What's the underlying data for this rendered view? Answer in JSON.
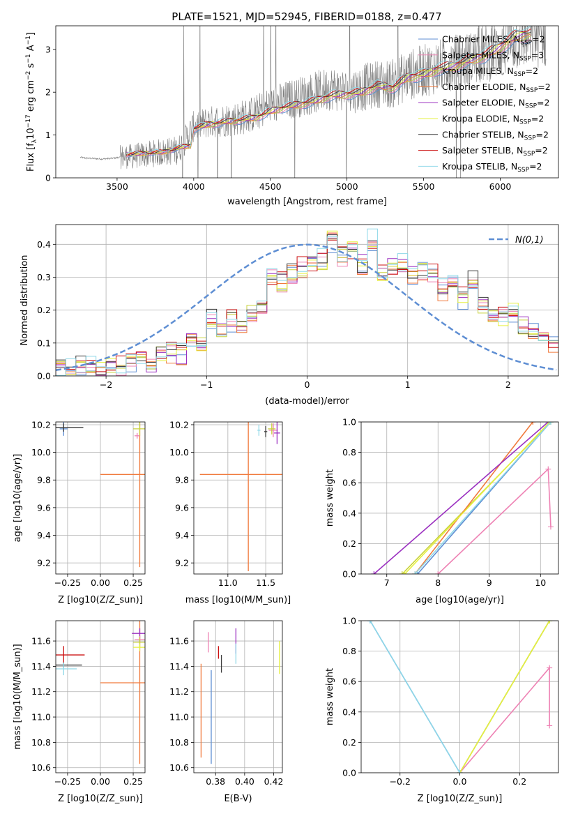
{
  "figure_title": "PLATE=1521, MJD=52945, FIBERID=0188, z=0.477",
  "model_legend": [
    {
      "name": "Chabrier MILES, N_SSP=2",
      "base": "Chabrier MILES, N",
      "sub": "SSP",
      "tail": "=2",
      "color": "#5e8ed3"
    },
    {
      "name": "Salpeter MILES, N_SSP=3",
      "base": "Salpeter MILES, N",
      "sub": "SSP",
      "tail": "=3",
      "color": "#ee82b4"
    },
    {
      "name": "Kroupa MILES, N_SSP=2",
      "base": "Kroupa MILES, N",
      "sub": "SSP",
      "tail": "=2",
      "color": "#c8d23c"
    },
    {
      "name": "Chabrier ELODIE, N_SSP=2",
      "base": "Chabrier ELODIE, N",
      "sub": "SSP",
      "tail": "=2",
      "color": "#f07a3c"
    },
    {
      "name": "Salpeter ELODIE, N_SSP=2",
      "base": "Salpeter ELODIE, N",
      "sub": "SSP",
      "tail": "=2",
      "color": "#9b30c0"
    },
    {
      "name": "Kroupa ELODIE, N_SSP=2",
      "base": "Kroupa ELODIE, N",
      "sub": "SSP",
      "tail": "=2",
      "color": "#e6f040"
    },
    {
      "name": "Chabrier STELIB, N_SSP=2",
      "base": "Chabrier STELIB, N",
      "sub": "SSP",
      "tail": "=2",
      "color": "#3a3a3a"
    },
    {
      "name": "Salpeter STELIB, N_SSP=2",
      "base": "Salpeter STELIB, N",
      "sub": "SSP",
      "tail": "=2",
      "color": "#cc1010"
    },
    {
      "name": "Kroupa STELIB, N_SSP=2",
      "base": "Kroupa STELIB, N",
      "sub": "SSP",
      "tail": "=2",
      "color": "#8fd8e8"
    }
  ],
  "chart_data": [
    {
      "type": "line",
      "panel": "spectrum",
      "xlabel": "wavelength [Angstrom, rest frame]",
      "ylabel": "Flux [f_λ 10^-17 erg cm^-2 s^-1 A^-1]",
      "xlim": [
        3100,
        6380
      ],
      "ylim": [
        0,
        3.55
      ],
      "xticks": [
        3500,
        4000,
        4500,
        5000,
        5500,
        6000
      ],
      "yticks": [
        0,
        1,
        2,
        3
      ],
      "grid": false,
      "legend": "top-right",
      "data_color": "#808080",
      "data_anchors": {
        "x": [
          3260,
          3300,
          3350,
          3400,
          3450,
          3500,
          3550,
          3600,
          3700,
          3800,
          3900,
          4000,
          4100,
          4200,
          4300,
          4400,
          4500,
          4600,
          4700,
          4800,
          4900,
          5000,
          5100,
          5200,
          5300,
          5400,
          5500,
          5600,
          5700,
          5800,
          5900,
          6000,
          6100,
          6200
        ],
        "y": [
          0.48,
          0.46,
          0.45,
          0.44,
          0.45,
          0.47,
          0.5,
          0.5,
          0.55,
          0.6,
          0.65,
          1.2,
          1.3,
          1.35,
          1.4,
          1.5,
          1.7,
          1.8,
          1.9,
          2.0,
          2.1,
          2.0,
          2.1,
          2.2,
          2.2,
          2.4,
          2.5,
          2.6,
          2.7,
          2.75,
          2.9,
          3.0,
          3.2,
          3.3
        ],
        "noise_start": 3520
      },
      "model_anchors": {
        "x": [
          3560,
          3700,
          3800,
          3900,
          3980,
          4000,
          4100,
          4200,
          4300,
          4400,
          4500,
          4600,
          4700,
          4800,
          4900,
          5000,
          5100,
          5200,
          5300,
          5400,
          5500,
          5600,
          5700,
          5800,
          5900,
          6000,
          6100,
          6200
        ],
        "y": [
          0.55,
          0.58,
          0.6,
          0.7,
          0.75,
          1.15,
          1.25,
          1.3,
          1.35,
          1.4,
          1.55,
          1.65,
          1.72,
          1.8,
          1.92,
          1.95,
          2.0,
          2.15,
          2.1,
          2.35,
          2.4,
          2.55,
          2.6,
          2.75,
          2.85,
          3.05,
          3.3,
          3.35
        ]
      }
    },
    {
      "type": "histogram",
      "panel": "residuals",
      "xlabel": "(data-model)/error",
      "ylabel": "Normed distribution",
      "xlim": [
        -2.5,
        2.5
      ],
      "ylim": [
        0,
        0.46
      ],
      "xticks": [
        -2,
        -1,
        0,
        1,
        2
      ],
      "yticks": [
        0.0,
        0.1,
        0.2,
        0.3,
        0.4
      ],
      "grid": true,
      "legend": "top-right",
      "gaussian_label": "N(0,1)",
      "gaussian_color": "#5e8ed3",
      "bins": [
        -2.5,
        -2.4,
        -2.3,
        -2.2,
        -2.1,
        -2.0,
        -1.9,
        -1.8,
        -1.7,
        -1.6,
        -1.5,
        -1.4,
        -1.3,
        -1.2,
        -1.1,
        -1.0,
        -0.9,
        -0.8,
        -0.7,
        -0.6,
        -0.5,
        -0.4,
        -0.3,
        -0.2,
        -0.1,
        0.0,
        0.1,
        0.2,
        0.3,
        0.4,
        0.5,
        0.6,
        0.7,
        0.8,
        0.9,
        1.0,
        1.1,
        1.2,
        1.3,
        1.4,
        1.5,
        1.6,
        1.7,
        1.8,
        1.9,
        2.0,
        2.1,
        2.2,
        2.3,
        2.4,
        2.5
      ],
      "base_counts": [
        0.02,
        0.02,
        0.03,
        0.03,
        0.03,
        0.04,
        0.03,
        0.04,
        0.05,
        0.04,
        0.07,
        0.07,
        0.06,
        0.1,
        0.1,
        0.17,
        0.13,
        0.17,
        0.16,
        0.2,
        0.2,
        0.3,
        0.29,
        0.31,
        0.33,
        0.34,
        0.35,
        0.41,
        0.36,
        0.38,
        0.34,
        0.41,
        0.31,
        0.33,
        0.34,
        0.31,
        0.32,
        0.31,
        0.26,
        0.28,
        0.24,
        0.29,
        0.21,
        0.19,
        0.18,
        0.2,
        0.15,
        0.14,
        0.11,
        0.1,
        0.09
      ]
    },
    {
      "type": "scatter",
      "panel": "age-vs-Z",
      "xlabel": "Z [log10(Z/Z_sun)]",
      "ylabel": "age [log10(age/yr)]",
      "xlim": [
        -0.34,
        0.34
      ],
      "ylim": [
        9.12,
        10.22
      ],
      "xticks": [
        -0.25,
        0.0,
        0.25
      ],
      "xtick_labels": [
        "-0.25",
        "0.00",
        "0.25"
      ],
      "yticks": [
        9.2,
        9.4,
        9.6,
        9.8,
        10.0,
        10.2
      ],
      "grid": true,
      "points": [
        {
          "x": 0.3,
          "y": 9.84,
          "xerr": 0.3,
          "yerr": 0.67,
          "series": 3
        },
        {
          "x": -0.28,
          "y": 10.17,
          "xerr": 0.03,
          "yerr": 0.05,
          "series": 0
        },
        {
          "x": 0.3,
          "y": 10.17,
          "xerr": 0.05,
          "yerr": 0.05,
          "series": 2
        },
        {
          "x": -0.28,
          "y": 10.18,
          "xerr": 0.15,
          "yerr": 0.03,
          "series": 6
        },
        {
          "x": 0.28,
          "y": 10.12,
          "xerr": 0.02,
          "yerr": 0.02,
          "series": 1
        }
      ]
    },
    {
      "type": "scatter",
      "panel": "age-vs-mass",
      "xlabel": "mass [log10(M/M_sun)]",
      "ylabel": "",
      "xlim": [
        10.55,
        11.72
      ],
      "ylim": [
        9.12,
        10.22
      ],
      "xticks": [
        11.0,
        11.5
      ],
      "xtick_labels": [
        "11.0",
        "11.5"
      ],
      "yticks": [
        9.2,
        9.4,
        9.6,
        9.8,
        10.0,
        10.2
      ],
      "grid": true,
      "points": [
        {
          "x": 11.27,
          "y": 9.84,
          "xerr": 0.64,
          "yerr": 0.7,
          "series": 3
        },
        {
          "x": 11.6,
          "y": 10.16,
          "xerr": 0.06,
          "yerr": 0.05,
          "series": 1
        },
        {
          "x": 11.65,
          "y": 10.14,
          "xerr": 0.04,
          "yerr": 0.08,
          "series": 4
        },
        {
          "x": 11.58,
          "y": 10.17,
          "xerr": 0.05,
          "yerr": 0.04,
          "series": 2
        },
        {
          "x": 11.5,
          "y": 10.15,
          "xerr": 0.02,
          "yerr": 0.04,
          "series": 6
        },
        {
          "x": 11.41,
          "y": 10.16,
          "xerr": 0.02,
          "yerr": 0.04,
          "series": 8
        }
      ]
    },
    {
      "type": "line",
      "panel": "weight-vs-age",
      "xlabel": "age [log10(age/yr)]",
      "ylabel": "mass weight",
      "xlim": [
        6.5,
        10.35
      ],
      "ylim": [
        0,
        1
      ],
      "xticks": [
        7,
        8,
        9,
        10
      ],
      "yticks": [
        0.0,
        0.2,
        0.4,
        0.6,
        0.8,
        1.0
      ],
      "grid": true,
      "series": [
        {
          "series": 0,
          "points": [
            [
              7.6,
              0
            ],
            [
              10.2,
              1
            ]
          ]
        },
        {
          "series": 1,
          "points": [
            [
              8.0,
              0
            ],
            [
              10.15,
              0.69
            ],
            [
              10.2,
              0.31
            ]
          ]
        },
        {
          "series": 2,
          "points": [
            [
              7.3,
              0
            ],
            [
              10.2,
              1
            ]
          ]
        },
        {
          "series": 3,
          "points": [
            [
              7.55,
              0
            ],
            [
              9.85,
              1
            ]
          ]
        },
        {
          "series": 4,
          "points": [
            [
              6.75,
              0
            ],
            [
              10.15,
              1
            ]
          ]
        },
        {
          "series": 5,
          "points": [
            [
              7.35,
              0
            ],
            [
              10.18,
              1
            ]
          ]
        },
        {
          "series": 8,
          "points": [
            [
              7.55,
              0
            ],
            [
              10.2,
              1
            ]
          ]
        }
      ]
    },
    {
      "type": "scatter",
      "panel": "mass-vs-Z",
      "xlabel": "Z [log10(Z/Z_sun)]",
      "ylabel": "mass [log10(M/M_sun)]",
      "xlim": [
        -0.34,
        0.34
      ],
      "ylim": [
        10.56,
        11.76
      ],
      "xticks": [
        -0.25,
        0.0,
        0.25
      ],
      "xtick_labels": [
        "-0.25",
        "0.00",
        "0.25"
      ],
      "yticks": [
        10.6,
        10.8,
        11.0,
        11.2,
        11.4,
        11.6
      ],
      "grid": true,
      "points": [
        {
          "x": 0.3,
          "y": 11.27,
          "xerr": 0.3,
          "yerr": 0.64,
          "series": 3
        },
        {
          "x": -0.28,
          "y": 11.49,
          "xerr": 0.16,
          "yerr": 0.07,
          "series": 7
        },
        {
          "x": -0.28,
          "y": 11.41,
          "xerr": 0.14,
          "yerr": 0.02,
          "series": 6
        },
        {
          "x": -0.28,
          "y": 11.38,
          "xerr": 0.1,
          "yerr": 0.05,
          "series": 8
        },
        {
          "x": 0.3,
          "y": 11.66,
          "xerr": 0.06,
          "yerr": 0.04,
          "series": 4
        },
        {
          "x": 0.3,
          "y": 11.61,
          "xerr": 0.04,
          "yerr": 0.03,
          "series": 1
        },
        {
          "x": 0.3,
          "y": 11.59,
          "xerr": 0.05,
          "yerr": 0.04,
          "series": 2
        },
        {
          "x": 0.3,
          "y": 11.55,
          "xerr": 0.05,
          "yerr": 0.03,
          "series": 5
        }
      ]
    },
    {
      "type": "scatter",
      "panel": "mass-vs-EBV",
      "xlabel": "E(B-V)",
      "ylabel": "",
      "xlim": [
        0.365,
        0.426
      ],
      "ylim": [
        10.56,
        11.76
      ],
      "xticks": [
        0.38,
        0.4,
        0.42
      ],
      "xtick_labels": [
        "0.38",
        "0.40",
        "0.42"
      ],
      "yticks": [
        10.6,
        10.8,
        11.0,
        11.2,
        11.4,
        11.6
      ],
      "grid": true,
      "points": [
        {
          "x": 0.37,
          "y": 11.05,
          "yerr": 0.37,
          "series": 3
        },
        {
          "x": 0.377,
          "y": 11.0,
          "yerr": 0.37,
          "series": 0
        },
        {
          "x": 0.375,
          "y": 11.59,
          "yerr": 0.08,
          "series": 1
        },
        {
          "x": 0.382,
          "y": 11.51,
          "yerr": 0.05,
          "series": 7
        },
        {
          "x": 0.384,
          "y": 11.42,
          "yerr": 0.07,
          "series": 6
        },
        {
          "x": 0.394,
          "y": 11.6,
          "yerr": 0.1,
          "series": 4
        },
        {
          "x": 0.394,
          "y": 11.5,
          "yerr": 0.08,
          "series": 8
        },
        {
          "x": 0.424,
          "y": 11.47,
          "yerr": 0.13,
          "series": 5
        }
      ]
    },
    {
      "type": "line",
      "panel": "weight-vs-Z",
      "xlabel": "Z [log10(Z/Z_sun)]",
      "ylabel": "mass weight",
      "xlim": [
        -0.33,
        0.33
      ],
      "ylim": [
        0,
        1
      ],
      "xticks": [
        -0.2,
        0.0,
        0.2
      ],
      "xtick_labels": [
        "-0.2",
        "0.0",
        "0.2"
      ],
      "yticks": [
        0.0,
        0.2,
        0.4,
        0.6,
        0.8,
        1.0
      ],
      "grid": true,
      "series": [
        {
          "series": 0,
          "points": [
            [
              -0.3,
              1
            ],
            [
              0,
              0
            ],
            [
              0.3,
              1
            ]
          ]
        },
        {
          "series": 1,
          "points": [
            [
              0,
              0
            ],
            [
              0.3,
              0.69
            ],
            [
              0.3,
              0.31
            ]
          ]
        },
        {
          "series": 2,
          "points": [
            [
              0,
              0
            ],
            [
              0.3,
              1
            ]
          ]
        },
        {
          "series": 5,
          "points": [
            [
              0,
              0
            ],
            [
              0.3,
              1
            ]
          ]
        },
        {
          "series": 8,
          "points": [
            [
              -0.3,
              1
            ],
            [
              0,
              0
            ]
          ]
        }
      ]
    }
  ]
}
